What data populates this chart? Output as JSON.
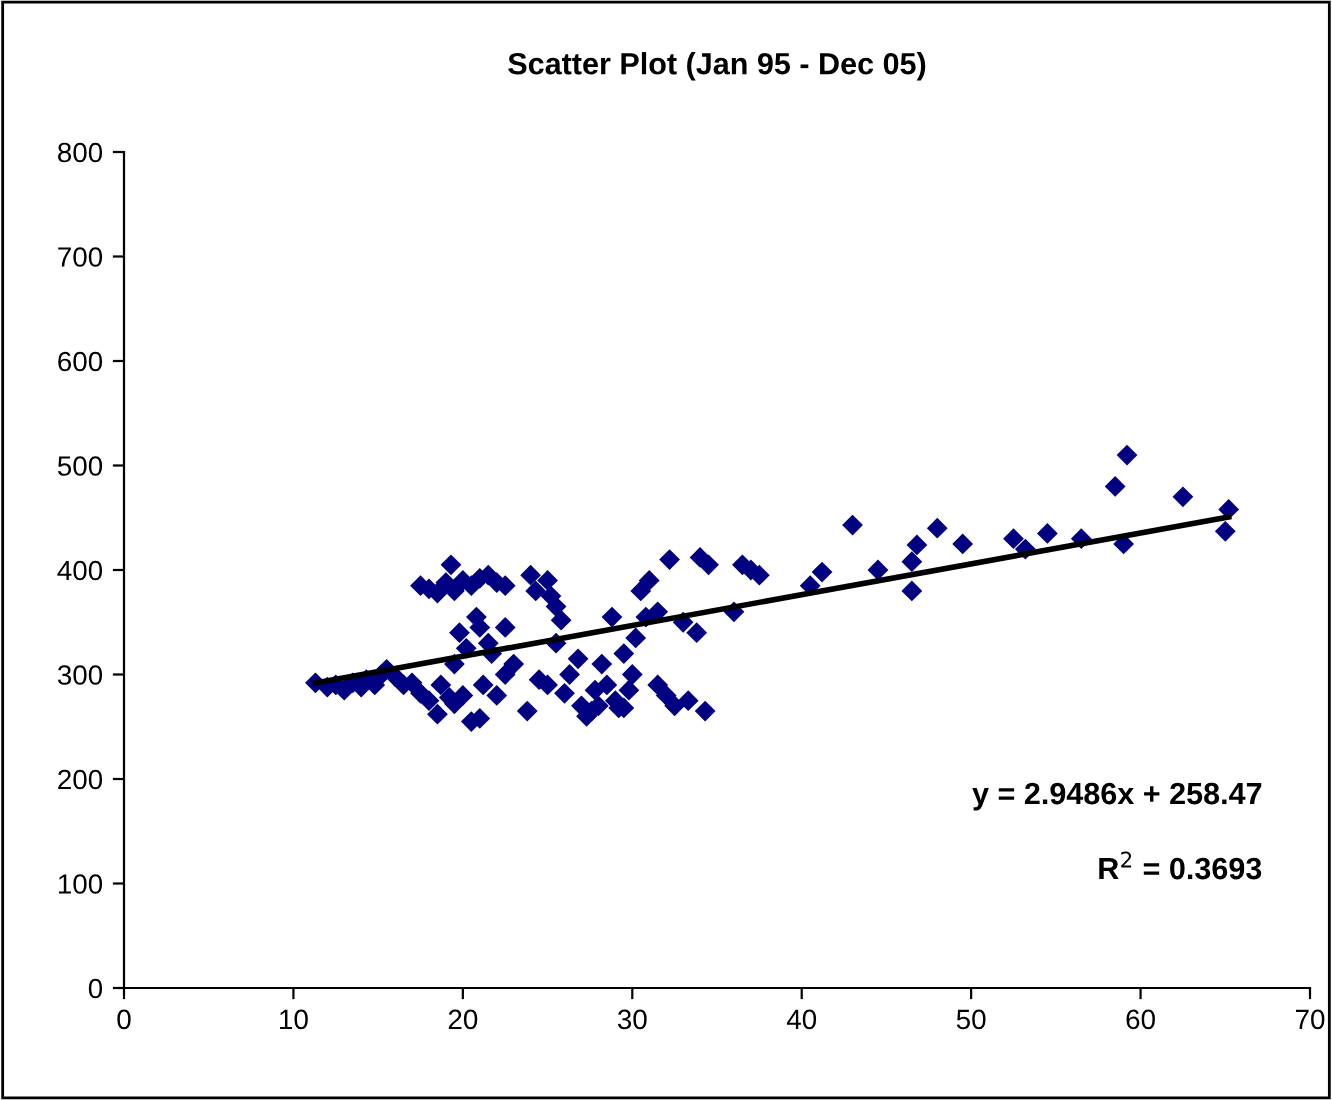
{
  "chart_data": {
    "type": "scatter",
    "title": "Scatter Plot (Jan 95 - Dec 05)",
    "marker": "diamond",
    "grid": false,
    "legend": false,
    "xlim": [
      0,
      70
    ],
    "xticks": [
      0,
      10,
      20,
      30,
      40,
      50,
      60,
      70
    ],
    "ylim": [
      0,
      800
    ],
    "yticks": [
      0,
      100,
      200,
      300,
      400,
      500,
      600,
      700,
      800
    ],
    "annotations": [
      "y = 2.9486x + 258.47",
      "R$^{2}$ = 0.3693"
    ],
    "series": [
      {
        "color": "#000080",
        "x": [
          11.3,
          12,
          12.5,
          13,
          13.5,
          14,
          14.3,
          14.8,
          15.2,
          15.5,
          16,
          16.5,
          17,
          17.5,
          18,
          18.5,
          18.7,
          19.2,
          19.5,
          20,
          20.5,
          21,
          21.2,
          22,
          22.5,
          23,
          19.8,
          20.2,
          21,
          21.5,
          20.8,
          22.5,
          19.5,
          21.7,
          17.5,
          18,
          18.5,
          19,
          19.3,
          19.5,
          20,
          20.5,
          21,
          21.5,
          22,
          22.5,
          24,
          24.3,
          25,
          25.2,
          25.5,
          25.8,
          23.8,
          24.5,
          25,
          25.5,
          26,
          26.3,
          26.8,
          27,
          27.3,
          27.6,
          28,
          28.2,
          28.5,
          28.8,
          29,
          29.2,
          29.5,
          29.8,
          30,
          30.2,
          30.5,
          30.8,
          31,
          31.5,
          32,
          32.2,
          32.5,
          33,
          33.3,
          33.8,
          34,
          34.3,
          34.5,
          36,
          36.5,
          37,
          37.5,
          31.5,
          29.5,
          27.8,
          40.5,
          41.2,
          43,
          44.5,
          46.5,
          46.5,
          46.8,
          48,
          49.5,
          52.5,
          53.2,
          54.5,
          56.5,
          58.5,
          59.2,
          59,
          62.5,
          65.2,
          65
        ],
        "values": [
          292,
          288,
          290,
          285,
          292,
          288,
          295,
          290,
          300,
          305,
          298,
          290,
          292,
          282,
          275,
          262,
          290,
          278,
          272,
          280,
          255,
          258,
          290,
          280,
          300,
          310,
          340,
          325,
          345,
          330,
          355,
          345,
          310,
          320,
          385,
          382,
          378,
          388,
          405,
          380,
          390,
          385,
          392,
          395,
          388,
          385,
          395,
          380,
          390,
          375,
          365,
          352,
          265,
          295,
          290,
          330,
          282,
          300,
          315,
          270,
          260,
          265,
          270,
          310,
          290,
          355,
          275,
          268,
          320,
          285,
          300,
          335,
          380,
          355,
          390,
          360,
          280,
          410,
          270,
          350,
          275,
          340,
          412,
          265,
          405,
          360,
          405,
          400,
          395,
          290,
          268,
          285,
          385,
          398,
          443,
          400,
          380,
          408,
          424,
          440,
          425,
          430,
          420,
          435,
          430,
          480,
          510,
          425,
          470,
          458,
          437
        ]
      },
      {
        "type": "line",
        "color": "#000000",
        "marker": "none",
        "x": [
          11.3,
          65.2
        ],
        "values": [
          291.8,
          450.7
        ]
      }
    ]
  }
}
